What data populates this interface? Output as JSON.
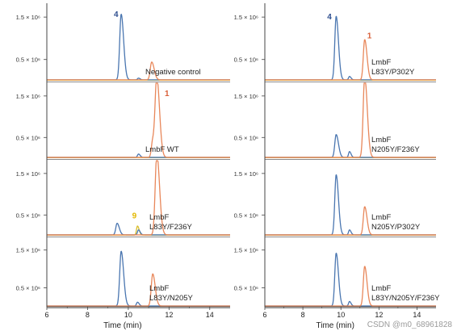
{
  "colors": {
    "blue": "#4a76b0",
    "orange": "#e8875a",
    "yellow": "#d9be2c",
    "gray": "#9a9a9a",
    "axis": "#444444",
    "number_blue": "#2f4f8f",
    "number_orange": "#d9603a",
    "number_yellow": "#e3b800"
  },
  "watermark": "CSDN @m0_68961828",
  "chart_data": [
    {
      "type": "line",
      "column": "left",
      "x_label": "Time (min)",
      "xlim": [
        6,
        15
      ],
      "x_ticks": [
        6,
        8,
        10,
        12,
        14
      ],
      "y_tick_values": [
        0.5,
        1.5
      ],
      "y_tick_labels": [
        "0.5 × 10⁶",
        "1.5 × 10⁶"
      ],
      "panels": [
        {
          "label": "Negative control",
          "ylim": [
            0,
            1.75
          ],
          "peak_numbers": [
            {
              "text": "4",
              "x": 9.4,
              "y": 1.5,
              "color": "blue"
            }
          ],
          "series": [
            {
              "color": "blue",
              "peaks": [
                {
                  "x": 9.65,
                  "h": 1.55,
                  "w": 0.09
                },
                {
                  "x": 10.5,
                  "h": 0.04,
                  "w": 0.06
                }
              ]
            },
            {
              "color": "orange",
              "peaks": [
                {
                  "x": 11.15,
                  "h": 0.42,
                  "w": 0.09
                }
              ]
            },
            {
              "color": "yellow",
              "peaks": []
            }
          ]
        },
        {
          "label": "LmbF WT",
          "ylim": [
            0,
            1.75
          ],
          "peak_numbers": [
            {
              "text": "1",
              "x": 11.9,
              "y": 1.5,
              "color": "orange"
            }
          ],
          "series": [
            {
              "color": "blue",
              "peaks": [
                {
                  "x": 10.5,
                  "h": 0.08,
                  "w": 0.06
                }
              ]
            },
            {
              "color": "orange",
              "peaks": [
                {
                  "x": 11.4,
                  "h": 1.9,
                  "w": 0.1
                },
                {
                  "x": 11.2,
                  "h": 0.4,
                  "w": 0.08
                }
              ]
            },
            {
              "color": "yellow",
              "peaks": []
            }
          ]
        },
        {
          "label": "LmbF\nL83Y/F236Y",
          "ylim": [
            0,
            1.75
          ],
          "peak_numbers": [
            {
              "text": "9",
              "x": 10.3,
              "y": 0.42,
              "color": "yellow"
            }
          ],
          "series": [
            {
              "color": "blue",
              "peaks": [
                {
                  "x": 9.45,
                  "h": 0.28,
                  "w": 0.08
                },
                {
                  "x": 10.5,
                  "h": 0.12,
                  "w": 0.06
                }
              ]
            },
            {
              "color": "orange",
              "peaks": [
                {
                  "x": 11.4,
                  "h": 1.95,
                  "w": 0.1
                }
              ]
            },
            {
              "color": "yellow",
              "peaks": [
                {
                  "x": 10.45,
                  "h": 0.22,
                  "w": 0.06
                }
              ]
            }
          ]
        },
        {
          "label": "LmbF\nL83Y/N205Y",
          "ylim": [
            0,
            1.75
          ],
          "peak_numbers": [],
          "series": [
            {
              "color": "blue",
              "peaks": [
                {
                  "x": 9.65,
                  "h": 1.45,
                  "w": 0.09
                },
                {
                  "x": 10.45,
                  "h": 0.1,
                  "w": 0.06
                }
              ]
            },
            {
              "color": "orange",
              "peaks": [
                {
                  "x": 11.2,
                  "h": 0.85,
                  "w": 0.09
                }
              ]
            },
            {
              "color": "yellow",
              "peaks": []
            }
          ]
        }
      ]
    },
    {
      "type": "line",
      "column": "right",
      "x_label": "Time (min)",
      "xlim": [
        6,
        15
      ],
      "x_ticks": [
        6,
        8,
        10,
        12,
        14
      ],
      "y_tick_values": [
        0.5,
        1.5
      ],
      "y_tick_labels": [
        "0.5 × 10⁶",
        "1.5 × 10⁶"
      ],
      "panels": [
        {
          "label": "LmbF\nL83Y/P302Y",
          "ylim": [
            0,
            1.75
          ],
          "peak_numbers": [
            {
              "text": "4",
              "x": 9.4,
              "y": 1.45,
              "color": "blue"
            },
            {
              "text": "1",
              "x": 11.5,
              "y": 1.0,
              "color": "orange"
            }
          ],
          "series": [
            {
              "color": "blue",
              "peaks": [
                {
                  "x": 9.75,
                  "h": 1.5,
                  "w": 0.09
                },
                {
                  "x": 10.45,
                  "h": 0.08,
                  "w": 0.06
                }
              ]
            },
            {
              "color": "orange",
              "peaks": [
                {
                  "x": 11.25,
                  "h": 0.95,
                  "w": 0.09
                }
              ]
            },
            {
              "color": "yellow",
              "peaks": []
            }
          ]
        },
        {
          "label": "LmbF\nN205Y/F236Y",
          "ylim": [
            0,
            1.75
          ],
          "peak_numbers": [],
          "series": [
            {
              "color": "blue",
              "peaks": [
                {
                  "x": 9.75,
                  "h": 0.55,
                  "w": 0.09
                },
                {
                  "x": 10.45,
                  "h": 0.14,
                  "w": 0.06
                }
              ]
            },
            {
              "color": "orange",
              "peaks": [
                {
                  "x": 11.25,
                  "h": 1.95,
                  "w": 0.1
                }
              ]
            },
            {
              "color": "yellow",
              "peaks": []
            }
          ]
        },
        {
          "label": "LmbF\nN205Y/P302Y",
          "ylim": [
            0,
            1.75
          ],
          "peak_numbers": [],
          "series": [
            {
              "color": "blue",
              "peaks": [
                {
                  "x": 9.75,
                  "h": 1.45,
                  "w": 0.09
                },
                {
                  "x": 10.45,
                  "h": 0.12,
                  "w": 0.06
                }
              ]
            },
            {
              "color": "orange",
              "peaks": [
                {
                  "x": 11.25,
                  "h": 0.68,
                  "w": 0.09
                }
              ]
            },
            {
              "color": "yellow",
              "peaks": []
            }
          ]
        },
        {
          "label": "LmbF\nL83Y/N205Y/F236Y",
          "ylim": [
            0,
            1.75
          ],
          "peak_numbers": [],
          "series": [
            {
              "color": "blue",
              "peaks": [
                {
                  "x": 9.75,
                  "h": 1.4,
                  "w": 0.09
                },
                {
                  "x": 10.45,
                  "h": 0.12,
                  "w": 0.06
                }
              ]
            },
            {
              "color": "orange",
              "peaks": [
                {
                  "x": 11.25,
                  "h": 1.05,
                  "w": 0.09
                }
              ]
            },
            {
              "color": "yellow",
              "peaks": []
            }
          ]
        }
      ]
    }
  ]
}
